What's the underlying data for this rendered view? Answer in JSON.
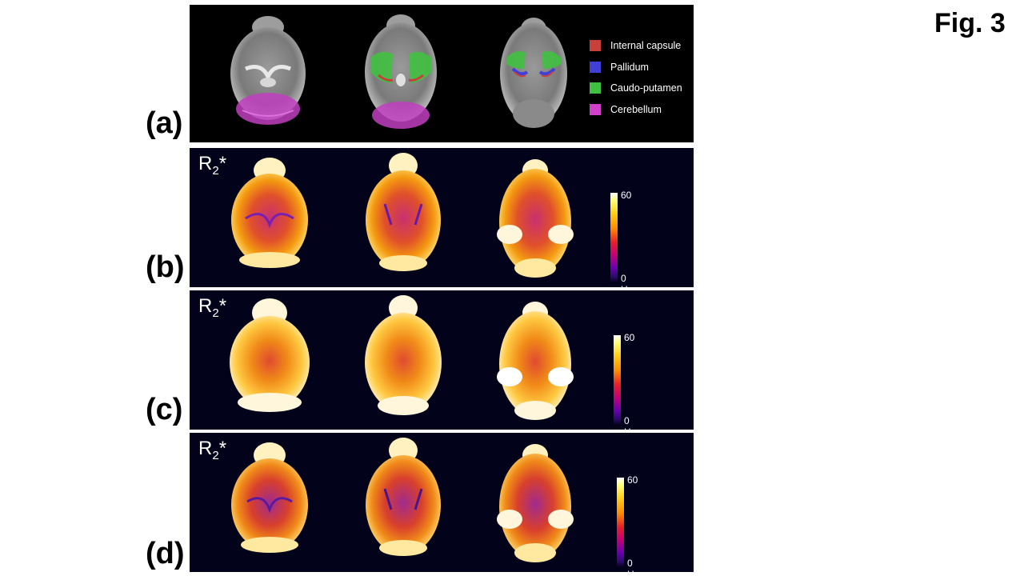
{
  "figure_label": "Fig. 3",
  "panels": [
    {
      "label": "(a)",
      "type": "anatomy"
    },
    {
      "label": "(b)",
      "type": "r2star",
      "map_label": "R",
      "map_sub": "2",
      "map_suffix": "*",
      "colorbar": {
        "max": "60",
        "min": "0 Hz"
      }
    },
    {
      "label": "(c)",
      "type": "r2star",
      "map_label": "R",
      "map_sub": "2",
      "map_suffix": "*",
      "colorbar": {
        "max": "60",
        "min": "0 Hz"
      }
    },
    {
      "label": "(d)",
      "type": "r2star",
      "map_label": "R",
      "map_sub": "2",
      "map_suffix": "*",
      "colorbar": {
        "max": "60",
        "min": "0 Hz"
      }
    }
  ],
  "legend": [
    {
      "label": "Internal  capsule",
      "color": "#c8403c"
    },
    {
      "label": "Pallidum",
      "color": "#4040d8"
    },
    {
      "label": "Caudo-putamen",
      "color": "#40c040"
    },
    {
      "label": "Cerebellum",
      "color": "#d040c8"
    }
  ]
}
